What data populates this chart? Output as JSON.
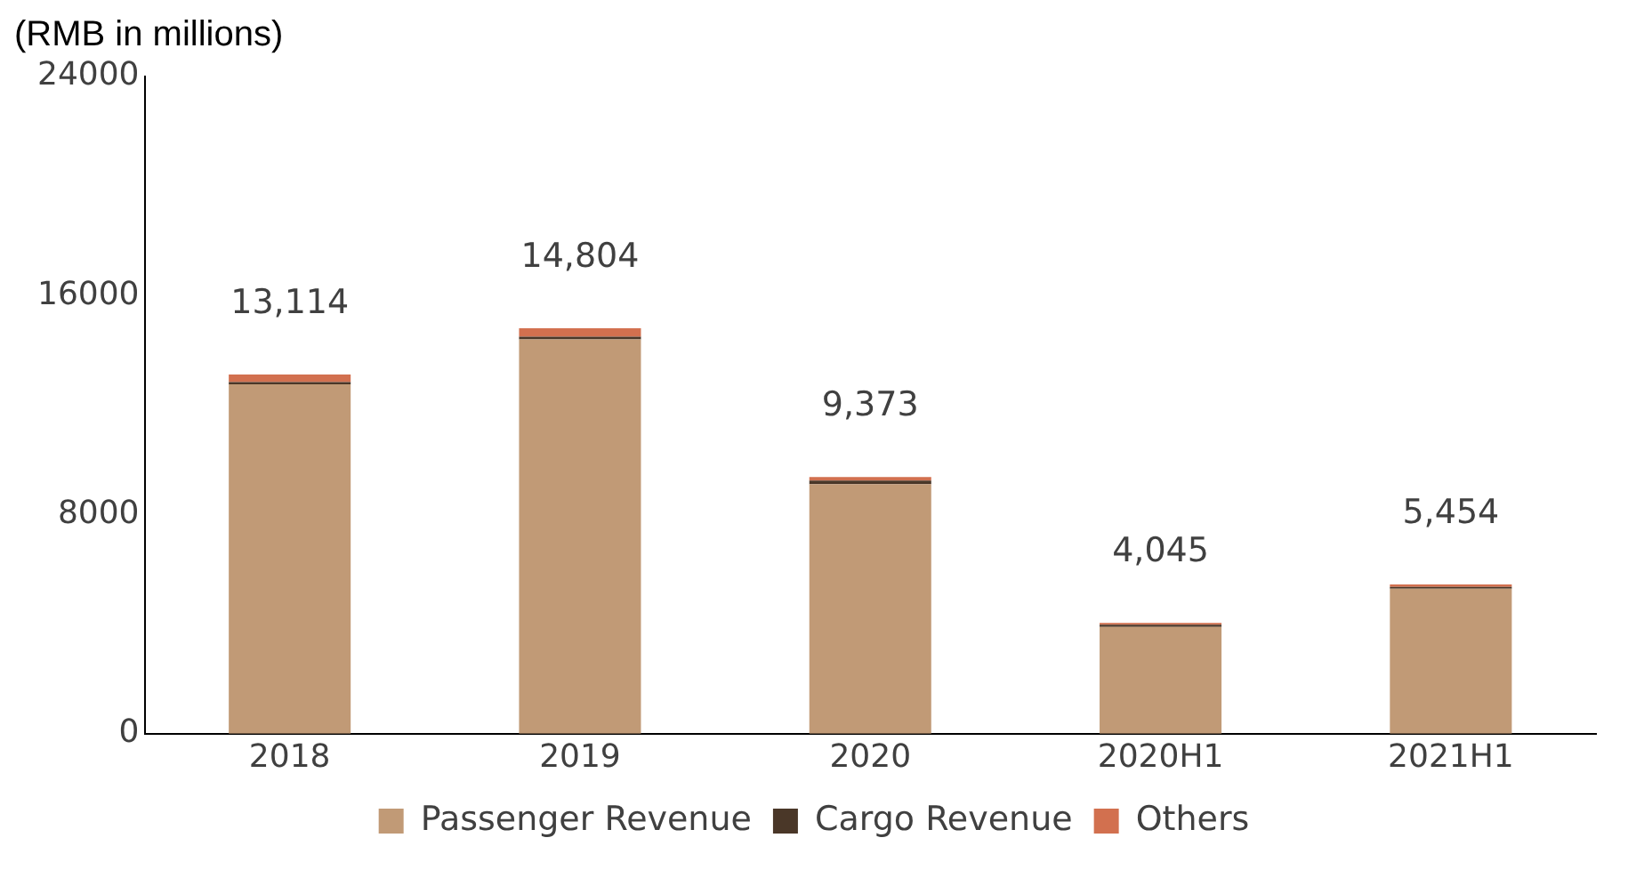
{
  "chart_data": {
    "type": "bar",
    "stacked": true,
    "ylabel": "(RMB in millions)",
    "categories": [
      "2018",
      "2019",
      "2020",
      "2020H1",
      "2021H1"
    ],
    "series": [
      {
        "name": "Passenger Revenue",
        "color": "#c19a76",
        "values": [
          12760,
          14400,
          9113,
          3900,
          5300
        ]
      },
      {
        "name": "Cargo Revenue",
        "color": "#4a3728",
        "values": [
          80,
          100,
          130,
          80,
          60
        ]
      },
      {
        "name": "Others",
        "color": "#d2704f",
        "values": [
          274,
          304,
          130,
          65,
          94
        ]
      }
    ],
    "totals": [
      "13,114",
      "14,804",
      "9,373",
      "4,045",
      "5,454"
    ],
    "ylim": [
      0,
      24000
    ],
    "yticks": [
      0,
      8000,
      16000,
      24000
    ],
    "grid": false,
    "legend": "bottom"
  }
}
